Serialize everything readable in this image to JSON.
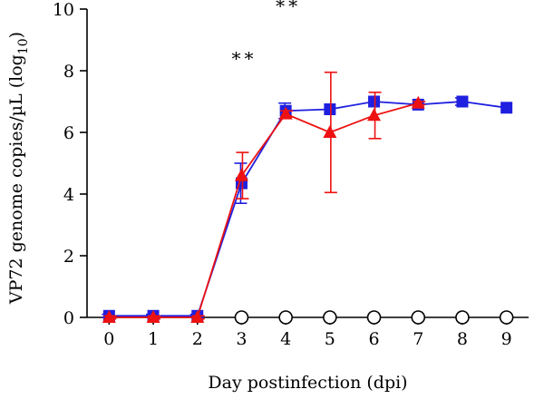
{
  "chart_data": {
    "type": "line",
    "title": "",
    "xlabel": "Day postinfection (dpi)",
    "ylabel": {
      "main": "VP72 genome copies/µL (log",
      "sub": "10",
      "close": ")"
    },
    "xlim": [
      -0.5,
      9.5
    ],
    "ylim": [
      0,
      10
    ],
    "xticks": [
      0,
      1,
      2,
      3,
      4,
      5,
      6,
      7,
      8,
      9
    ],
    "yticks": [
      0,
      2,
      4,
      6,
      8,
      10
    ],
    "grid": false,
    "series": [
      {
        "marker": "square",
        "color": "#1f1fe0",
        "x": [
          0,
          1,
          2,
          3,
          4,
          5,
          6,
          7,
          8,
          9
        ],
        "y": [
          0.05,
          0.05,
          0.05,
          4.35,
          6.7,
          6.75,
          7.0,
          6.9,
          7.0,
          6.8
        ],
        "err": [
          0.05,
          0.05,
          0.05,
          0.65,
          0.25,
          0.0,
          0.0,
          0.0,
          0.12,
          0.0
        ]
      },
      {
        "marker": "triangle",
        "color": "#ee1111",
        "x": [
          0,
          1,
          2,
          3,
          4,
          5,
          6,
          7
        ],
        "y": [
          0.0,
          0.0,
          0.0,
          4.6,
          6.6,
          6.0,
          6.55,
          6.95
        ],
        "err": [
          0.05,
          0.05,
          0.05,
          0.75,
          0.1,
          1.95,
          0.75,
          0.05
        ]
      },
      {
        "marker": "open-circle",
        "color": "#000000",
        "x": [
          3,
          4,
          5,
          6,
          7,
          8,
          9
        ],
        "y": [
          0,
          0,
          0,
          0,
          0,
          0,
          0
        ],
        "err": []
      }
    ],
    "annotations": [
      {
        "x": 3,
        "y": 8.4,
        "text": "**"
      },
      {
        "x": 4,
        "y": 10.1,
        "text": "**"
      },
      {
        "x": 5,
        "y": 10.85,
        "text": "**"
      },
      {
        "x": 6,
        "y": 10.85,
        "text": "**"
      },
      {
        "x": 7,
        "y": 10.85,
        "text": "**"
      },
      {
        "x": 8,
        "y": 10.85,
        "text": "**"
      }
    ]
  }
}
